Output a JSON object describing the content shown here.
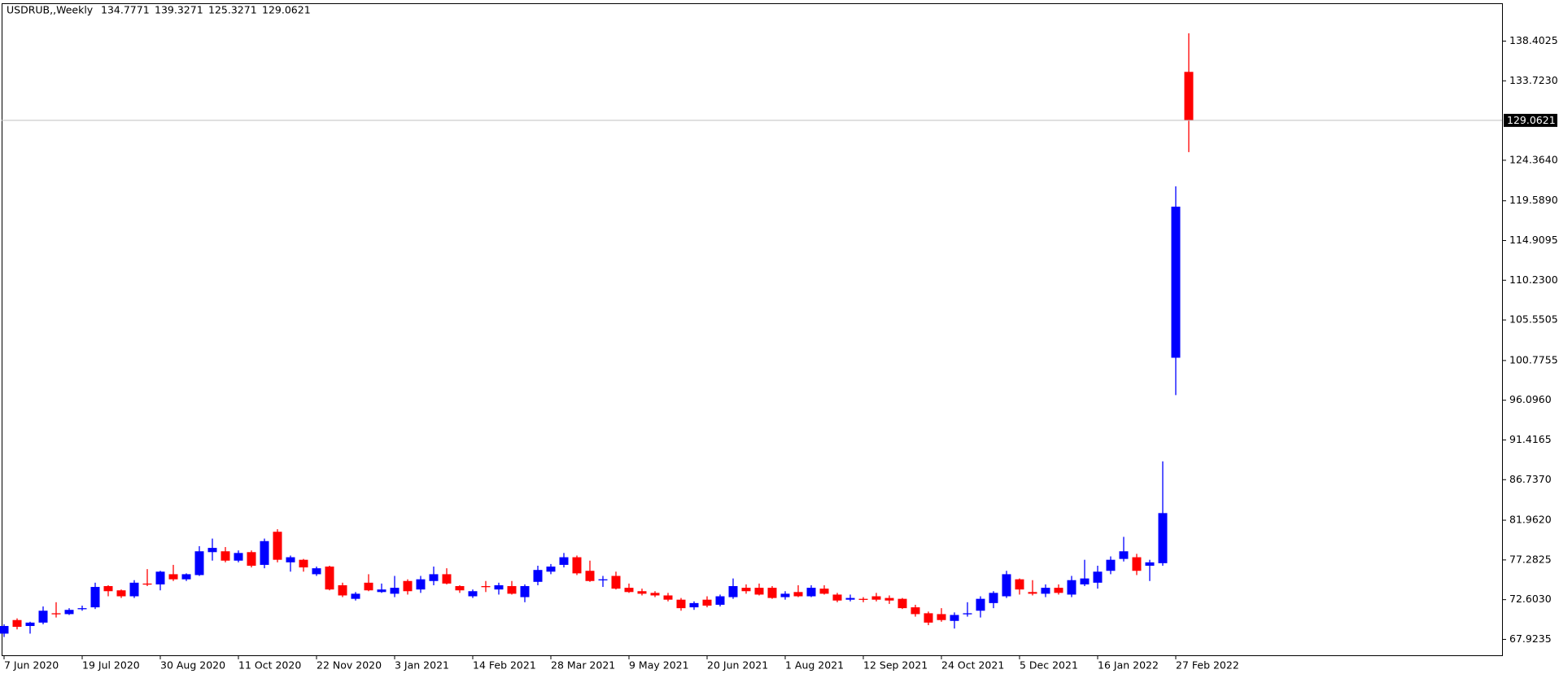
{
  "chart_data": {
    "type": "candlestick",
    "title": "USDRUB,,Weekly",
    "categories": [
      "7 Jun 2020",
      null,
      null,
      null,
      null,
      null,
      "19 Jul 2020",
      null,
      null,
      null,
      null,
      null,
      "30 Aug 2020",
      null,
      null,
      null,
      null,
      null,
      "11 Oct 2020",
      null,
      null,
      null,
      null,
      null,
      "22 Nov 2020",
      null,
      null,
      null,
      null,
      null,
      "3 Jan 2021",
      null,
      null,
      null,
      null,
      null,
      "14 Feb 2021",
      null,
      null,
      null,
      null,
      null,
      "28 Mar 2021",
      null,
      null,
      null,
      null,
      null,
      "9 May 2021",
      null,
      null,
      null,
      null,
      null,
      "20 Jun 2021",
      null,
      null,
      null,
      null,
      null,
      "1 Aug 2021",
      null,
      null,
      null,
      null,
      null,
      "12 Sep 2021",
      null,
      null,
      null,
      null,
      null,
      "24 Oct 2021",
      null,
      null,
      null,
      null,
      null,
      "5 Dec 2021",
      null,
      null,
      null,
      null,
      null,
      "16 Jan 2022",
      null,
      null,
      null,
      null,
      null,
      "27 Feb 2022",
      null
    ],
    "open": [
      68.6,
      70.2,
      69.5,
      69.9,
      71.0,
      70.9,
      71.5,
      71.7,
      74.2,
      73.7,
      73.0,
      74.5,
      74.4,
      75.6,
      75.0,
      75.5,
      78.2,
      78.3,
      77.2,
      78.2,
      76.7,
      80.6,
      77.0,
      77.3,
      75.6,
      76.5,
      74.3,
      72.7,
      74.6,
      73.5,
      73.3,
      74.8,
      73.8,
      74.8,
      75.6,
      74.2,
      73.0,
      74.2,
      73.8,
      74.2,
      72.9,
      74.7,
      75.9,
      76.7,
      77.6,
      76.0,
      74.9,
      75.4,
      74.0,
      73.6,
      73.4,
      73.1,
      72.6,
      71.7,
      72.6,
      72.0,
      72.9,
      74.0,
      74.0,
      74.0,
      72.9,
      73.5,
      73.0,
      73.9,
      73.2,
      72.6,
      72.7,
      73.0,
      72.8,
      72.7,
      71.7,
      71.0,
      70.9,
      70.1,
      70.9,
      71.3,
      72.2,
      73.0,
      75.0,
      73.5,
      73.3,
      74.0,
      73.2,
      74.4,
      74.6,
      76.0,
      77.4,
      77.6,
      76.6,
      76.9,
      101.1,
      134.7771
    ],
    "high": [
      69.7,
      70.4,
      70.0,
      71.8,
      72.3,
      71.6,
      71.9,
      74.6,
      74.3,
      73.8,
      74.9,
      76.2,
      76.0,
      76.7,
      75.7,
      78.9,
      79.8,
      78.8,
      78.4,
      78.4,
      79.8,
      80.9,
      77.8,
      77.4,
      76.5,
      76.6,
      74.6,
      73.5,
      75.6,
      74.5,
      75.4,
      75.0,
      75.4,
      76.5,
      76.3,
      74.3,
      73.8,
      74.8,
      74.6,
      74.8,
      74.4,
      76.6,
      76.8,
      78.1,
      77.8,
      77.2,
      75.4,
      75.9,
      74.5,
      73.9,
      73.6,
      73.4,
      72.8,
      72.4,
      73.0,
      73.2,
      75.1,
      74.4,
      74.5,
      74.2,
      73.6,
      74.3,
      74.3,
      74.3,
      73.4,
      73.2,
      72.9,
      73.4,
      73.1,
      72.8,
      72.0,
      71.2,
      71.6,
      71.1,
      72.3,
      73.0,
      73.6,
      76.0,
      75.1,
      74.9,
      74.4,
      74.4,
      75.4,
      77.3,
      76.6,
      77.7,
      80.0,
      78.0,
      77.3,
      88.9,
      121.3,
      139.3271
    ],
    "low": [
      68.2,
      69.1,
      68.6,
      69.7,
      70.5,
      70.8,
      71.3,
      71.5,
      73.0,
      72.8,
      72.8,
      74.2,
      73.7,
      74.8,
      74.8,
      75.4,
      77.2,
      77.0,
      77.0,
      76.4,
      76.3,
      77.0,
      75.9,
      75.9,
      75.4,
      73.7,
      72.9,
      72.5,
      73.6,
      73.4,
      72.9,
      73.2,
      73.4,
      74.3,
      74.4,
      73.4,
      72.8,
      73.5,
      73.2,
      73.2,
      72.3,
      74.3,
      75.6,
      76.4,
      75.5,
      74.7,
      74.1,
      73.8,
      73.4,
      73.1,
      72.9,
      72.4,
      71.3,
      71.4,
      71.7,
      71.8,
      72.7,
      73.3,
      73.1,
      72.7,
      72.6,
      72.9,
      72.9,
      73.2,
      72.3,
      72.4,
      72.3,
      72.4,
      72.1,
      71.5,
      70.6,
      69.6,
      70.0,
      69.2,
      70.6,
      70.5,
      71.6,
      72.8,
      73.2,
      73.1,
      72.9,
      73.2,
      72.9,
      74.2,
      73.9,
      75.6,
      77.1,
      75.5,
      74.8,
      76.6,
      96.7,
      125.3271
    ],
    "close": [
      69.5,
      69.4,
      69.9,
      71.3,
      70.9,
      71.4,
      71.6,
      74.1,
      73.6,
      73.0,
      74.6,
      74.4,
      75.9,
      75.0,
      75.6,
      78.3,
      78.7,
      77.2,
      78.1,
      76.6,
      79.5,
      77.3,
      77.6,
      76.4,
      76.3,
      73.8,
      73.1,
      73.3,
      73.7,
      73.8,
      74.0,
      73.6,
      75.0,
      75.6,
      74.5,
      73.7,
      73.6,
      74.1,
      74.3,
      73.3,
      74.2,
      76.1,
      76.5,
      77.6,
      75.7,
      74.8,
      75.0,
      73.9,
      73.5,
      73.3,
      73.1,
      72.6,
      71.6,
      72.2,
      71.9,
      73.0,
      74.2,
      73.6,
      73.2,
      72.8,
      73.3,
      73.0,
      74.0,
      73.3,
      72.5,
      72.8,
      72.6,
      72.6,
      72.5,
      71.6,
      70.9,
      69.9,
      70.2,
      70.8,
      71.0,
      72.7,
      73.4,
      75.6,
      73.8,
      73.3,
      74.0,
      73.4,
      74.9,
      75.1,
      75.9,
      77.3,
      78.3,
      76.0,
      77.0,
      82.8,
      118.9,
      129.0621
    ],
    "up_color": "#0000ff",
    "down_color": "#ff0000",
    "price_line_color": "#c0c0c0",
    "ylim": [
      66.05,
      142.86
    ],
    "yticks": [
      138.4025,
      {
        "value": 133.723,
        "label": "133.7230"
      },
      {
        "value": 124.364,
        "label": "124.3640"
      },
      {
        "value": 119.589,
        "label": "119.5890"
      },
      114.9095,
      {
        "value": 110.23,
        "label": "110.2300"
      },
      105.5505,
      100.7755,
      {
        "value": 96.096,
        "label": "96.0960"
      },
      91.4165,
      {
        "value": 86.737,
        "label": "86.7370"
      },
      {
        "value": 81.962,
        "label": "81.9620"
      },
      77.2825,
      {
        "value": 72.603,
        "label": "72.6030"
      },
      67.9235
    ]
  }
}
